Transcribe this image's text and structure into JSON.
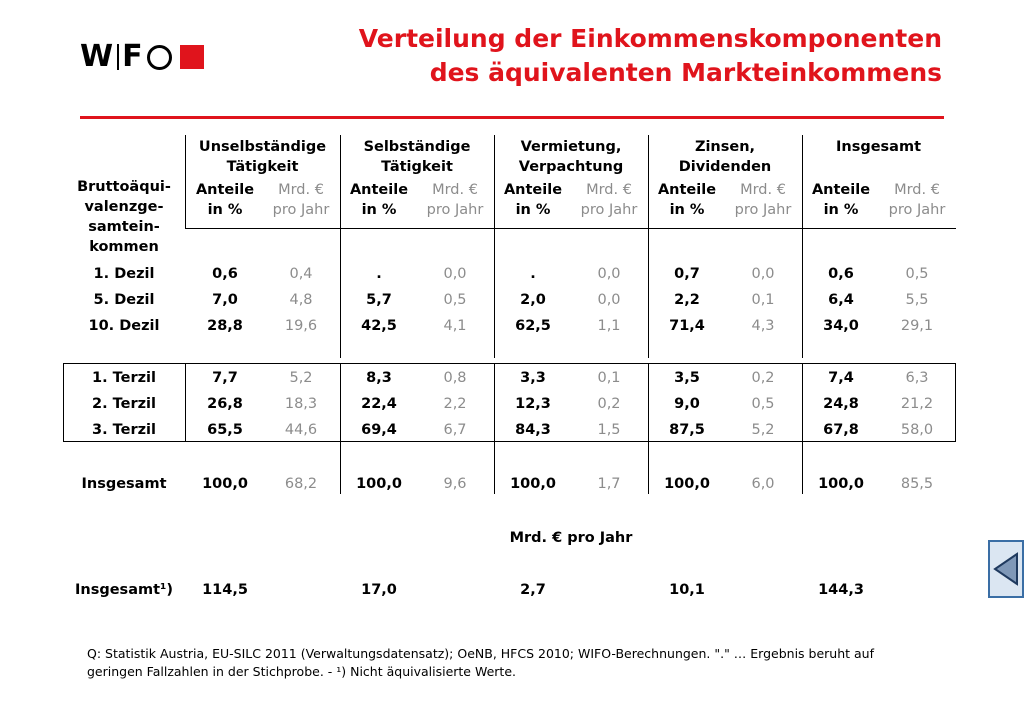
{
  "logo": {
    "text_w": "W",
    "text_f": "F",
    "brand_color": "#e0141c"
  },
  "title": {
    "line1": "Verteilung der Einkommenskomponenten",
    "line2": "des äquivalenten Markteinkommens"
  },
  "table": {
    "row_header": [
      "Bruttoäqui-",
      "valenzge-",
      "samtein-",
      "kommen"
    ],
    "groups": [
      {
        "line1": "Unselbständige",
        "line2": "Tätigkeit"
      },
      {
        "line1": "Selbständige",
        "line2": "Tätigkeit"
      },
      {
        "line1": "Vermietung,",
        "line2": "Verpachtung"
      },
      {
        "line1": "Zinsen,",
        "line2": "Dividenden"
      },
      {
        "line1": "Insgesamt",
        "line2": ""
      }
    ],
    "sub_a": {
      "line1": "Anteile",
      "line2": "in %"
    },
    "sub_b": {
      "line1": "Mrd. €",
      "line2": "pro Jahr"
    },
    "rows": [
      {
        "label": "1. Dezil",
        "values": [
          "0,6",
          "0,4",
          ".",
          "0,0",
          ".",
          "0,0",
          "0,7",
          "0,0",
          "0,6",
          "0,5"
        ]
      },
      {
        "label": "5. Dezil",
        "values": [
          "7,0",
          "4,8",
          "5,7",
          "0,5",
          "2,0",
          "0,0",
          "2,2",
          "0,1",
          "6,4",
          "5,5"
        ]
      },
      {
        "label": "10. Dezil",
        "values": [
          "28,8",
          "19,6",
          "42,5",
          "4,1",
          "62,5",
          "1,1",
          "71,4",
          "4,3",
          "34,0",
          "29,1"
        ]
      },
      {
        "label": "1. Terzil",
        "values": [
          "7,7",
          "5,2",
          "8,3",
          "0,8",
          "3,3",
          "0,1",
          "3,5",
          "0,2",
          "7,4",
          "6,3"
        ]
      },
      {
        "label": "2. Terzil",
        "values": [
          "26,8",
          "18,3",
          "22,4",
          "2,2",
          "12,3",
          "0,2",
          "9,0",
          "0,5",
          "24,8",
          "21,2"
        ]
      },
      {
        "label": "3. Terzil",
        "values": [
          "65,5",
          "44,6",
          "69,4",
          "6,7",
          "84,3",
          "1,5",
          "87,5",
          "5,2",
          "67,8",
          "58,0"
        ]
      },
      {
        "label": "Insgesamt",
        "values": [
          "100,0",
          "68,2",
          "100,0",
          "9,6",
          "100,0",
          "1,7",
          "100,0",
          "6,0",
          "100,0",
          "85,5"
        ]
      }
    ],
    "unit_row": "Mrd. € pro Jahr",
    "total_row": {
      "label": "Insgesamt¹)",
      "values": [
        "114,5",
        "17,0",
        "2,7",
        "10,1",
        "144,3"
      ]
    }
  },
  "footnote": {
    "line1": "Q: Statistik Austria, EU-SILC 2011 (Verwaltungsdatensatz); OeNB, HFCS 2010; WIFO-Berechnungen. \".\" … Ergebnis beruht auf",
    "line2": "geringen Fallzahlen in der Stichprobe. - ¹) Nicht äquivalisierte Werte."
  },
  "nav": {
    "icon": "triangle-left-icon"
  }
}
